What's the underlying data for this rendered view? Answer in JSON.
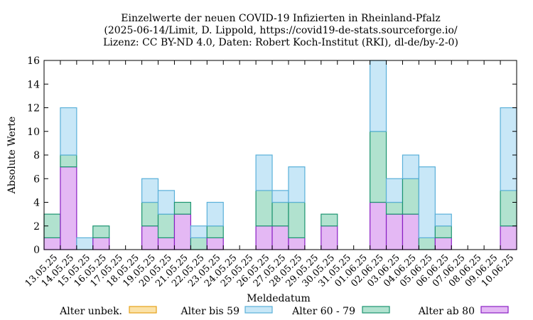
{
  "chart_data": {
    "type": "bar",
    "stacked": true,
    "title": [
      "Einzelwerte der neuen COVID-19 Infizierten in Rheinland-Pfalz",
      "(2025-06-14/Limit, D. Lippold, https://covid19-de-stats.sourceforge.io/",
      "Lizenz: CC BY-ND 4.0, Daten: Robert Koch-Institut (RKI), dl-de/by-2-0)"
    ],
    "xlabel": "Meldedatum",
    "ylabel": "Absolute Werte",
    "ylim": [
      0,
      16
    ],
    "yticks": [
      0,
      2,
      4,
      6,
      8,
      10,
      12,
      14,
      16
    ],
    "grid": false,
    "legend_position": "bottom",
    "categories": [
      "13.05.25",
      "14.05.25",
      "15.05.25",
      "16.05.25",
      "17.05.25",
      "18.05.25",
      "19.05.25",
      "20.05.25",
      "21.05.25",
      "22.05.25",
      "23.05.25",
      "24.05.25",
      "25.05.25",
      "26.05.25",
      "27.05.25",
      "28.05.25",
      "29.05.25",
      "30.05.25",
      "31.05.25",
      "01.06.25",
      "02.06.25",
      "03.06.25",
      "04.06.25",
      "05.06.25",
      "06.06.25",
      "07.06.25",
      "08.06.25",
      "09.06.25",
      "10.06.25"
    ],
    "series": [
      {
        "name": "Alter ab 80",
        "fill": "#e4b8f4",
        "stroke": "#8a1fc4",
        "values": [
          1,
          7,
          0,
          1,
          0,
          0,
          2,
          1,
          3,
          0,
          1,
          0,
          0,
          2,
          2,
          1,
          0,
          2,
          0,
          0,
          4,
          3,
          3,
          0,
          1,
          0,
          0,
          0,
          2
        ]
      },
      {
        "name": "Alter 60 - 79",
        "fill": "#b1e2cf",
        "stroke": "#1c9470",
        "values": [
          2,
          1,
          0,
          1,
          0,
          0,
          2,
          2,
          1,
          1,
          1,
          0,
          0,
          3,
          2,
          3,
          0,
          1,
          0,
          0,
          6,
          1,
          3,
          1,
          1,
          0,
          0,
          0,
          3
        ]
      },
      {
        "name": "Alter bis 59",
        "fill": "#c8e7f7",
        "stroke": "#5ab0d9",
        "values": [
          0,
          4,
          1,
          0,
          0,
          0,
          2,
          2,
          0,
          1,
          2,
          0,
          0,
          3,
          1,
          3,
          0,
          0,
          0,
          0,
          6,
          2,
          2,
          6,
          1,
          0,
          0,
          0,
          7
        ]
      },
      {
        "name": "Alter unbek.",
        "fill": "#fbe2a8",
        "stroke": "#e5a21a",
        "values": [
          0,
          0,
          0,
          0,
          0,
          0,
          0,
          0,
          0,
          0,
          0,
          0,
          0,
          0,
          0,
          0,
          0,
          0,
          0,
          0,
          0,
          0,
          0,
          0,
          0,
          0,
          0,
          0,
          0
        ]
      }
    ],
    "legend_order": [
      "Alter unbek.",
      "Alter bis 59",
      "Alter 60 - 79",
      "Alter ab 80"
    ]
  }
}
